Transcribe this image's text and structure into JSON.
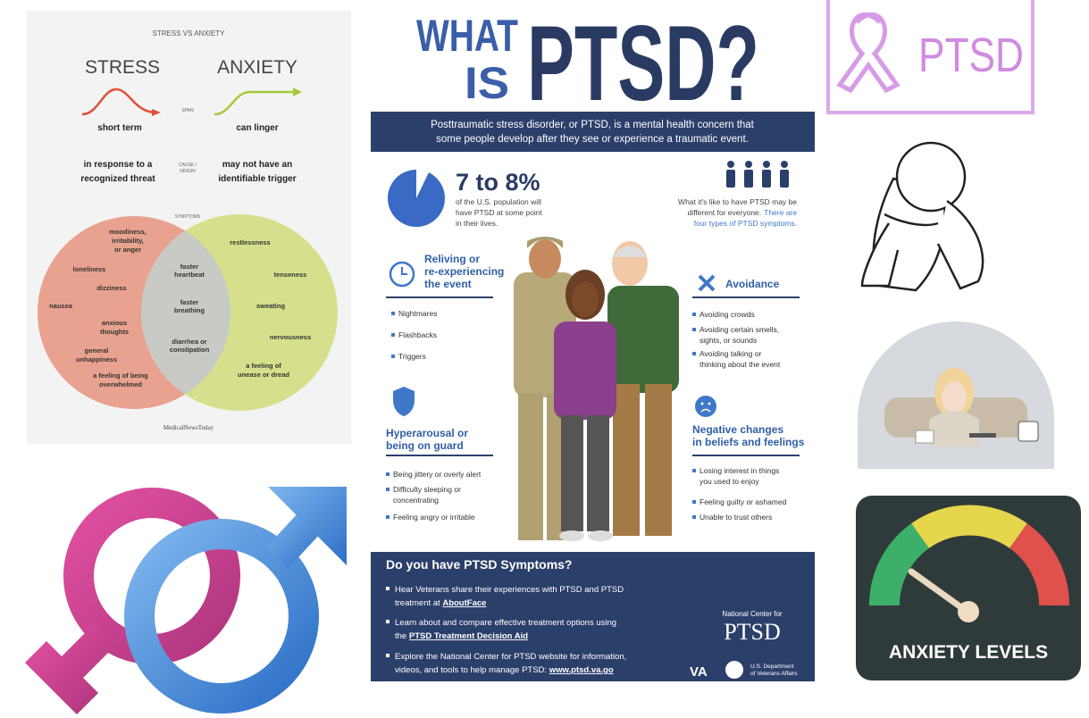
{
  "stress_vs_anxiety": {
    "heading": "STRESS VS ANXIETY",
    "stress": "STRESS",
    "anxiety": "ANXIETY",
    "span": "SPAN",
    "stress_span": "short term",
    "anxiety_span": "can linger",
    "cause": [
      "CAUSE /",
      "ORIGIN"
    ],
    "stress_cause": [
      "in response to a",
      "recognized threat"
    ],
    "anxiety_cause": [
      "may not have an",
      "identifiable trigger"
    ],
    "symptoms": "SYMPTOMS",
    "stress_symptoms": [
      [
        "moodiness,",
        "irritability,",
        "or anger"
      ],
      [
        "loneliness"
      ],
      [
        "dizziness"
      ],
      [
        "nausea"
      ],
      [
        "anxious",
        "thoughts"
      ],
      [
        "general",
        "unhappiness"
      ],
      [
        "a feeling of being",
        "overwhelmed"
      ]
    ],
    "shared_symptoms": [
      [
        "faster",
        "heartbeat"
      ],
      [
        "faster",
        "breathing"
      ],
      [
        "diarrhea or",
        "constipation"
      ]
    ],
    "anxiety_symptoms": [
      [
        "restlessness"
      ],
      [
        "tenseness"
      ],
      [
        "sweating"
      ],
      [
        "nervousness"
      ],
      [
        "a feeling of",
        "unease or dread"
      ]
    ],
    "source": "MedicalNewsToday"
  },
  "ptsd_infographic": {
    "title_what": "WHAT",
    "title_is": "IS",
    "title_ptsd": "PTSD?",
    "intro": [
      "Posttraumatic stress disorder, or PTSD, is a mental health concern that",
      "some people develop after they see or experience a traumatic event."
    ],
    "stat": "7 to 8%",
    "stat_text": [
      "of the U.S. population will",
      "have PTSD at some point",
      "in their lives."
    ],
    "types_text": [
      "What it's like to have PTSD may be",
      "different for everyone."
    ],
    "types_highlight": [
      "There are",
      "four types of PTSD symptoms."
    ],
    "sections": [
      {
        "title": [
          "Reliving or",
          "re-experiencing",
          "the event"
        ],
        "items": [
          [
            "Nightmares"
          ],
          [
            "Flashbacks"
          ],
          [
            "Triggers"
          ]
        ]
      },
      {
        "title": [
          "Avoidance"
        ],
        "items": [
          [
            "Avoiding crowds"
          ],
          [
            "Avoiding certain smells,",
            "sights, or sounds"
          ],
          [
            "Avoiding talking or",
            "thinking about the event"
          ]
        ]
      },
      {
        "title": [
          "Hyperarousal or",
          "being on guard"
        ],
        "items": [
          [
            "Being jittery or overly alert"
          ],
          [
            "Difficulty sleeping or",
            "concentrating"
          ],
          [
            "Feeling angry or irritable"
          ]
        ]
      },
      {
        "title": [
          "Negative changes",
          "in beliefs and feelings"
        ],
        "items": [
          [
            "Losing interest in things",
            "you used to enjoy"
          ],
          [
            "Feeling guilty or ashamed"
          ],
          [
            "Unable to trust others"
          ]
        ]
      }
    ],
    "footer_heading": "Do you have PTSD Symptoms?",
    "footer_bullets": [
      [
        {
          "text": "Hear Veterans share their experiences with PTSD and PTSD"
        },
        {
          "text": "treatment at ",
          "link": "AboutFace"
        }
      ],
      [
        {
          "text": "Learn about and compare effective treatment options using"
        },
        {
          "text": "the ",
          "link": "PTSD Treatment Decision Aid"
        }
      ],
      [
        {
          "text": "Explore the National Center for PTSD website for information,"
        },
        {
          "text": "videos, and tools to help manage PTSD: ",
          "link": "www.ptsd.va.go"
        }
      ]
    ],
    "logo": [
      "National Center for",
      "PTSD"
    ],
    "va": "VA",
    "department": [
      "U.S. Department",
      "of Veterans Affairs"
    ]
  },
  "ptsd_logo": {
    "text": "PTSD"
  },
  "anxiety_gauge": {
    "label": "ANXIETY LEVELS"
  }
}
